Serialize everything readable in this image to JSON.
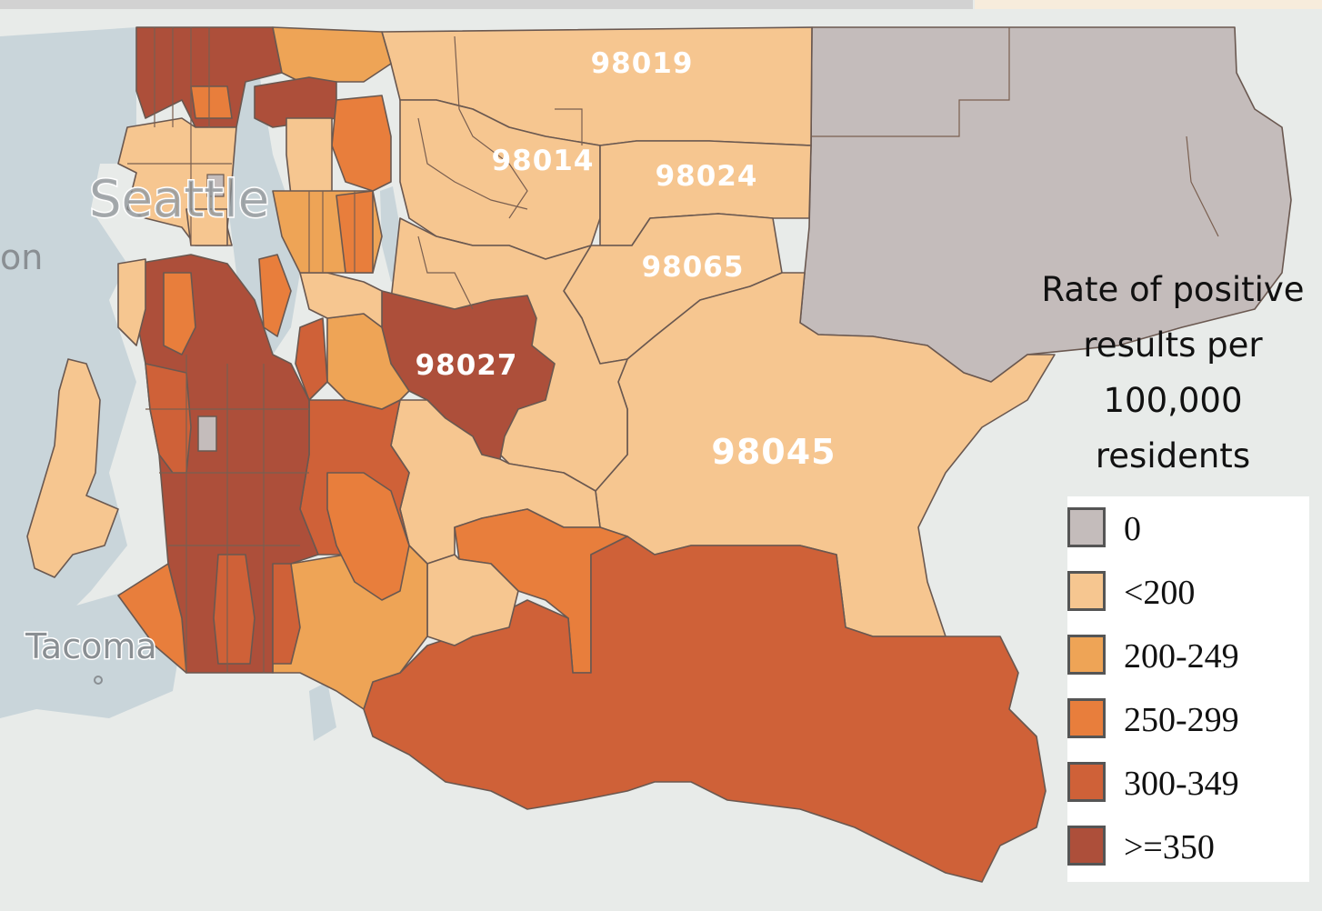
{
  "map": {
    "base_colors": {
      "water": "#c9d5da",
      "land": "#e9ecea"
    },
    "place_labels": {
      "seattle": "Seattle",
      "on": "on",
      "tacoma": "Tacoma"
    },
    "zip_labels": {
      "z98019": "98019",
      "z98014": "98014",
      "z98024": "98024",
      "z98065": "98065",
      "z98027": "98027",
      "z98045": "98045"
    }
  },
  "legend": {
    "title_lines": [
      "Rate of positive",
      "results per",
      "100,000",
      "residents"
    ],
    "items": [
      {
        "label": "0",
        "color": "#c4bcbb"
      },
      {
        "label": "<200",
        "color": "#f6c690"
      },
      {
        "label": "200-249",
        "color": "#eea456"
      },
      {
        "label": "250-299",
        "color": "#e87e3c"
      },
      {
        "label": "300-349",
        "color": "#cf6138"
      },
      {
        "label": ">=350",
        "color": "#ad4f3a"
      }
    ]
  }
}
